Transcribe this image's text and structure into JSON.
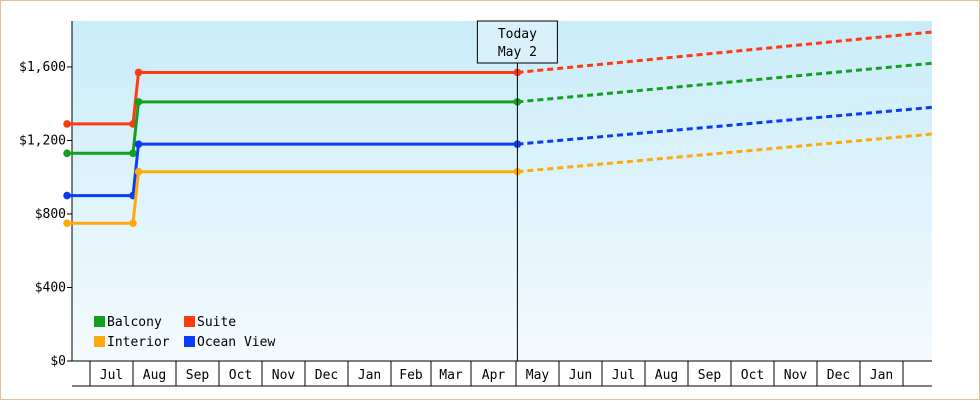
{
  "chart_data": {
    "type": "line",
    "y_axis": {
      "ylim": [
        0,
        1850
      ],
      "ticks": [
        0,
        400,
        800,
        1200,
        1600
      ],
      "tick_labels": [
        "$0",
        "$400",
        "$800",
        "$1,200",
        "$1,600"
      ]
    },
    "x_axis": {
      "tick_labels": [
        "Jul",
        "Aug",
        "Sep",
        "Oct",
        "Nov",
        "Dec",
        "Jan",
        "Feb",
        "Mar",
        "Apr",
        "May",
        "Jun",
        "Jul",
        "Aug",
        "Sep",
        "Oct",
        "Nov",
        "Dec",
        "Jan"
      ]
    },
    "today_marker": {
      "line1": "Today",
      "line2": "May 2"
    },
    "legend_placement": "bottom-left",
    "series": [
      {
        "name": "Suite",
        "color": "#ff3a12",
        "actual": [
          [
            "Jun 15",
            1290
          ],
          [
            "Aug 1",
            1290
          ],
          [
            "Aug 5",
            1570
          ],
          [
            "May 2",
            1570
          ]
        ],
        "projected_end": 1790
      },
      {
        "name": "Balcony",
        "color": "#14a01e",
        "actual": [
          [
            "Jun 15",
            1130
          ],
          [
            "Aug 1",
            1130
          ],
          [
            "Aug 5",
            1410
          ],
          [
            "May 2",
            1410
          ]
        ],
        "projected_end": 1620
      },
      {
        "name": "Ocean View",
        "color": "#0a3cf5",
        "actual": [
          [
            "Jun 15",
            900
          ],
          [
            "Aug 1",
            900
          ],
          [
            "Aug 5",
            1180
          ],
          [
            "May 2",
            1180
          ]
        ],
        "projected_end": 1380
      },
      {
        "name": "Interior",
        "color": "#ffa90a",
        "actual": [
          [
            "Jun 15",
            750
          ],
          [
            "Aug 1",
            750
          ],
          [
            "Aug 5",
            1030
          ],
          [
            "May 2",
            1030
          ]
        ],
        "projected_end": 1235
      }
    ]
  },
  "legend": {
    "items": [
      {
        "label": "Balcony",
        "color": "#14a01e"
      },
      {
        "label": "Suite",
        "color": "#ff3a12"
      },
      {
        "label": "Interior",
        "color": "#ffa90a"
      },
      {
        "label": "Ocean View",
        "color": "#0a3cf5"
      }
    ]
  }
}
